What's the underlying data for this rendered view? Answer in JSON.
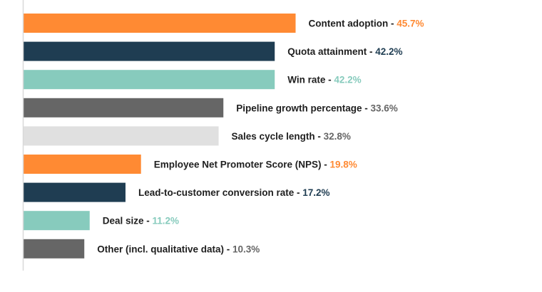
{
  "chart_data": {
    "type": "bar",
    "orientation": "horizontal",
    "title": "",
    "xlabel": "",
    "ylabel": "",
    "xlim": [
      0,
      50
    ],
    "grid": false,
    "legend": "none",
    "categories": [
      "Content adoption",
      "Quota attainment",
      "Win rate",
      "Pipeline growth percentage",
      "Sales cycle length",
      "Employee Net Promoter Score (NPS)",
      "Lead-to-customer conversion rate",
      "Deal size",
      "Other (incl. qualitative data)"
    ],
    "values": [
      45.7,
      42.2,
      42.2,
      33.6,
      32.8,
      19.8,
      17.2,
      11.2,
      10.3
    ],
    "value_labels": [
      "45.7%",
      "42.2%",
      "42.2%",
      "33.6%",
      "32.8%",
      "19.8%",
      "17.2%",
      "11.2%",
      "10.3%"
    ],
    "bar_colors": [
      "#FF8A33",
      "#1F3D52",
      "#87CBBD",
      "#666666",
      "#E0E0E0",
      "#FF8A33",
      "#1F3D52",
      "#87CBBD",
      "#666666"
    ],
    "value_colors": [
      "#FF8A33",
      "#1F3D52",
      "#87CBBD",
      "#666666",
      "#666666",
      "#FF8A33",
      "#1F3D52",
      "#87CBBD",
      "#666666"
    ],
    "separator": " - ",
    "axis_color": "#D9D9D9"
  }
}
